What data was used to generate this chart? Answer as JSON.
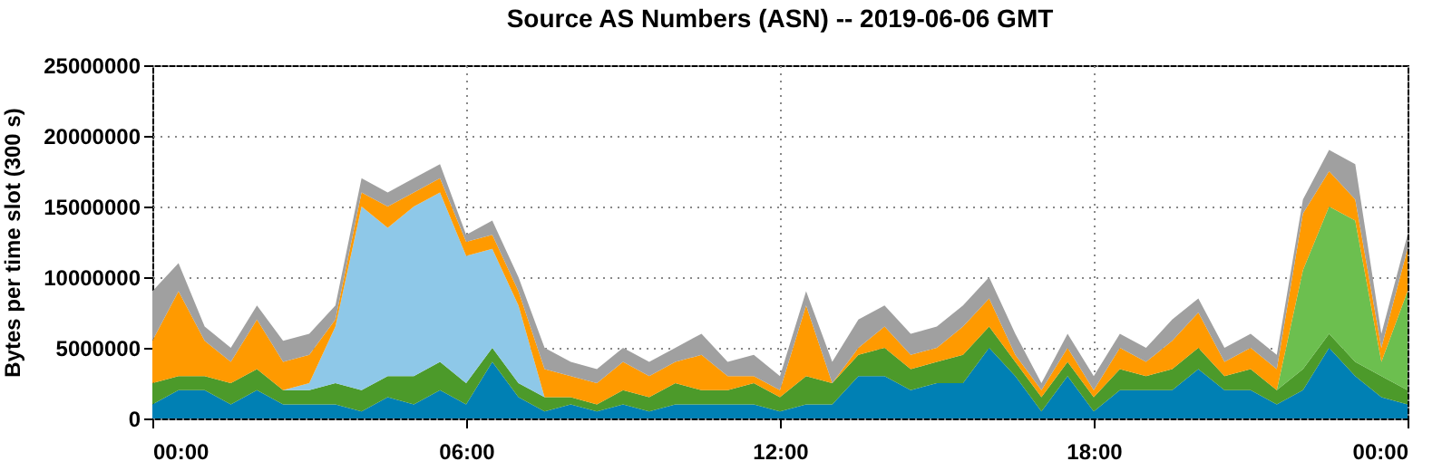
{
  "chart_data": {
    "type": "area",
    "stacked": true,
    "title": "Source AS Numbers (ASN) -- 2019-06-06 GMT",
    "ylabel": "Bytes per time slot (300 s)",
    "x": [
      0,
      0.5,
      1,
      1.5,
      2,
      2.5,
      3,
      3.5,
      4,
      4.5,
      5,
      5.5,
      6,
      6.5,
      7,
      7.5,
      8,
      8.5,
      9,
      9.5,
      10,
      10.5,
      11,
      11.5,
      12,
      12.5,
      13,
      13.5,
      14,
      14.5,
      15,
      15.5,
      16,
      16.5,
      17,
      17.5,
      18,
      18.5,
      19,
      19.5,
      20,
      20.5,
      21,
      21.5,
      22,
      22.5,
      23,
      23.5,
      24
    ],
    "xlim": [
      0,
      24
    ],
    "xticks": [
      {
        "value": 0,
        "label": "00:00"
      },
      {
        "value": 6,
        "label": "06:00"
      },
      {
        "value": 12,
        "label": "12:00"
      },
      {
        "value": 18,
        "label": "18:00"
      },
      {
        "value": 24,
        "label": "00:00"
      }
    ],
    "ylim": [
      0,
      25000000
    ],
    "yticks": [
      0,
      5000000,
      10000000,
      15000000,
      20000000,
      25000000
    ],
    "grid": true,
    "series": [
      {
        "color": "#0080b4",
        "values": [
          1000000.0,
          2000000.0,
          2000000.0,
          1000000.0,
          2000000.0,
          1000000.0,
          1000000.0,
          1000000.0,
          500000.0,
          1500000.0,
          1000000.0,
          2000000.0,
          1000000.0,
          4000000.0,
          1500000.0,
          500000.0,
          1000000.0,
          500000.0,
          1000000.0,
          500000.0,
          1000000.0,
          1000000.0,
          1000000.0,
          1000000.0,
          500000.0,
          1000000.0,
          1000000.0,
          3000000.0,
          3000000.0,
          2000000.0,
          2500000.0,
          2500000.0,
          5000000.0,
          3000000.0,
          500000.0,
          3000000.0,
          500000.0,
          2000000.0,
          2000000.0,
          2000000.0,
          3500000.0,
          2000000.0,
          2000000.0,
          1000000.0,
          2000000.0,
          5000000.0,
          3000000.0,
          1500000.0,
          1000000.0
        ]
      },
      {
        "color": "#4c9a2a",
        "values": [
          1500000.0,
          1000000.0,
          1000000.0,
          1500000.0,
          1500000.0,
          1000000.0,
          1000000.0,
          1500000.0,
          1500000.0,
          1500000.0,
          2000000.0,
          2000000.0,
          1500000.0,
          1000000.0,
          1000000.0,
          1000000.0,
          500000.0,
          500000.0,
          1000000.0,
          1000000.0,
          1500000.0,
          1000000.0,
          1000000.0,
          1500000.0,
          1000000.0,
          2000000.0,
          1500000.0,
          1500000.0,
          2000000.0,
          1500000.0,
          1500000.0,
          2000000.0,
          1500000.0,
          1000000.0,
          1000000.0,
          1000000.0,
          1000000.0,
          1500000.0,
          1000000.0,
          1500000.0,
          1500000.0,
          1000000.0,
          1500000.0,
          1000000.0,
          1500000.0,
          1000000.0,
          1000000.0,
          1500000.0,
          1000000.0
        ]
      },
      {
        "color": "#8ec8e8",
        "values": [
          null,
          null,
          null,
          null,
          null,
          0,
          500000.0,
          4000000.0,
          13000000.0,
          10500000.0,
          12000000.0,
          12000000.0,
          9000000.0,
          7000000.0,
          5500000.0,
          0,
          null,
          null,
          null,
          null,
          null,
          null,
          null,
          null,
          null,
          null,
          null,
          null,
          null,
          null,
          null,
          null,
          null,
          null,
          null,
          null,
          null,
          null,
          null,
          null,
          null,
          null,
          null,
          null,
          null,
          null,
          null,
          null,
          null
        ]
      },
      {
        "color": "#6cbf4f",
        "values": [
          null,
          null,
          null,
          null,
          null,
          null,
          null,
          null,
          null,
          null,
          null,
          null,
          null,
          null,
          null,
          null,
          null,
          null,
          null,
          null,
          null,
          null,
          null,
          null,
          null,
          null,
          null,
          null,
          null,
          null,
          null,
          null,
          null,
          null,
          null,
          null,
          null,
          null,
          null,
          null,
          null,
          null,
          null,
          0,
          7000000.0,
          9000000.0,
          10000000.0,
          1000000.0,
          7000000.0
        ]
      },
      {
        "color": "#ff9a00",
        "values": [
          3000000.0,
          6000000.0,
          2500000.0,
          1500000.0,
          3500000.0,
          2000000.0,
          2000000.0,
          500000.0,
          1000000.0,
          1500000.0,
          1000000.0,
          1000000.0,
          1000000.0,
          1000000.0,
          1000000.0,
          2000000.0,
          1500000.0,
          1500000.0,
          2000000.0,
          1500000.0,
          1500000.0,
          2500000.0,
          1000000.0,
          500000.0,
          500000.0,
          5000000.0,
          0,
          500000.0,
          1500000.0,
          1000000.0,
          1000000.0,
          2000000.0,
          2000000.0,
          500000.0,
          500000.0,
          1000000.0,
          500000.0,
          1500000.0,
          1000000.0,
          2000000.0,
          2500000.0,
          1000000.0,
          1500000.0,
          1500000.0,
          4000000.0,
          2500000.0,
          1500000.0,
          1000000.0,
          3000000.0
        ]
      },
      {
        "color": "#a0a0a0",
        "values": [
          3500000.0,
          2000000.0,
          1000000.0,
          1000000.0,
          1000000.0,
          1500000.0,
          1500000.0,
          1000000.0,
          1000000.0,
          1000000.0,
          1000000.0,
          1000000.0,
          500000.0,
          1000000.0,
          1000000.0,
          1500000.0,
          1000000.0,
          1000000.0,
          1000000.0,
          1000000.0,
          1000000.0,
          1500000.0,
          1000000.0,
          1500000.0,
          1000000.0,
          1000000.0,
          1500000.0,
          2000000.0,
          1500000.0,
          1500000.0,
          1500000.0,
          1500000.0,
          1500000.0,
          1500000.0,
          500000.0,
          1000000.0,
          1000000.0,
          1000000.0,
          1000000.0,
          1500000.0,
          1000000.0,
          1000000.0,
          1000000.0,
          1000000.0,
          1000000.0,
          1500000.0,
          2500000.0,
          1000000.0,
          1000000.0
        ]
      }
    ]
  }
}
